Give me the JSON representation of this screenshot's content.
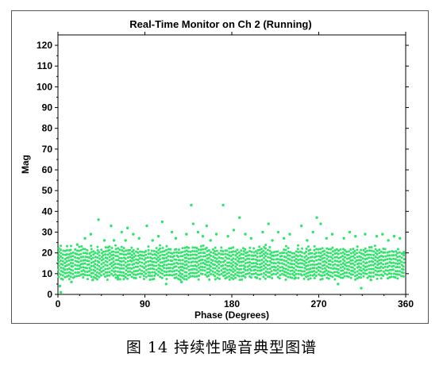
{
  "figure_caption": "图 14 持续性噪音典型图谱",
  "chart_data": {
    "type": "scatter",
    "title": "Real-Time Monitor on Ch 2 (Running)",
    "xlabel": "Phase (Degrees)",
    "ylabel": "Mag",
    "xlim": [
      0,
      360
    ],
    "ylim": [
      0,
      125
    ],
    "x_ticks": [
      0,
      90,
      180,
      270,
      360
    ],
    "y_ticks": [
      0,
      10,
      20,
      30,
      40,
      50,
      60,
      70,
      80,
      90,
      100,
      110,
      120
    ],
    "grid": false,
    "point_color": "#2ee56a",
    "dense_band": {
      "x_range": [
        0,
        360
      ],
      "y_range": [
        7,
        24
      ],
      "mode_y": 16
    },
    "outliers": [
      {
        "x": 2,
        "y": 4
      },
      {
        "x": 3,
        "y": 1
      },
      {
        "x": 14,
        "y": 6
      },
      {
        "x": 20,
        "y": 24
      },
      {
        "x": 28,
        "y": 27
      },
      {
        "x": 34,
        "y": 29
      },
      {
        "x": 36,
        "y": 7
      },
      {
        "x": 42,
        "y": 36
      },
      {
        "x": 48,
        "y": 26
      },
      {
        "x": 55,
        "y": 33
      },
      {
        "x": 58,
        "y": 26
      },
      {
        "x": 62,
        "y": 8
      },
      {
        "x": 66,
        "y": 30
      },
      {
        "x": 70,
        "y": 26
      },
      {
        "x": 72,
        "y": 32
      },
      {
        "x": 78,
        "y": 29
      },
      {
        "x": 84,
        "y": 27
      },
      {
        "x": 92,
        "y": 33
      },
      {
        "x": 98,
        "y": 26
      },
      {
        "x": 104,
        "y": 28
      },
      {
        "x": 108,
        "y": 35
      },
      {
        "x": 112,
        "y": 5
      },
      {
        "x": 118,
        "y": 30
      },
      {
        "x": 122,
        "y": 27
      },
      {
        "x": 128,
        "y": 6
      },
      {
        "x": 133,
        "y": 29
      },
      {
        "x": 138,
        "y": 43
      },
      {
        "x": 140,
        "y": 34
      },
      {
        "x": 145,
        "y": 30
      },
      {
        "x": 150,
        "y": 28
      },
      {
        "x": 154,
        "y": 33
      },
      {
        "x": 158,
        "y": 26
      },
      {
        "x": 164,
        "y": 29
      },
      {
        "x": 171,
        "y": 43
      },
      {
        "x": 176,
        "y": 28
      },
      {
        "x": 182,
        "y": 31
      },
      {
        "x": 188,
        "y": 37
      },
      {
        "x": 194,
        "y": 29
      },
      {
        "x": 200,
        "y": 27
      },
      {
        "x": 206,
        "y": 8
      },
      {
        "x": 212,
        "y": 30
      },
      {
        "x": 218,
        "y": 34
      },
      {
        "x": 222,
        "y": 26
      },
      {
        "x": 228,
        "y": 30
      },
      {
        "x": 234,
        "y": 27
      },
      {
        "x": 240,
        "y": 29
      },
      {
        "x": 246,
        "y": 8
      },
      {
        "x": 252,
        "y": 33
      },
      {
        "x": 258,
        "y": 26
      },
      {
        "x": 264,
        "y": 30
      },
      {
        "x": 268,
        "y": 37
      },
      {
        "x": 272,
        "y": 34
      },
      {
        "x": 278,
        "y": 27
      },
      {
        "x": 284,
        "y": 29
      },
      {
        "x": 290,
        "y": 5
      },
      {
        "x": 296,
        "y": 27
      },
      {
        "x": 302,
        "y": 30
      },
      {
        "x": 308,
        "y": 28
      },
      {
        "x": 314,
        "y": 3
      },
      {
        "x": 318,
        "y": 29
      },
      {
        "x": 324,
        "y": 7
      },
      {
        "x": 330,
        "y": 28
      },
      {
        "x": 336,
        "y": 29
      },
      {
        "x": 342,
        "y": 26
      },
      {
        "x": 348,
        "y": 28
      },
      {
        "x": 354,
        "y": 27
      },
      {
        "x": 358,
        "y": 20
      }
    ]
  }
}
